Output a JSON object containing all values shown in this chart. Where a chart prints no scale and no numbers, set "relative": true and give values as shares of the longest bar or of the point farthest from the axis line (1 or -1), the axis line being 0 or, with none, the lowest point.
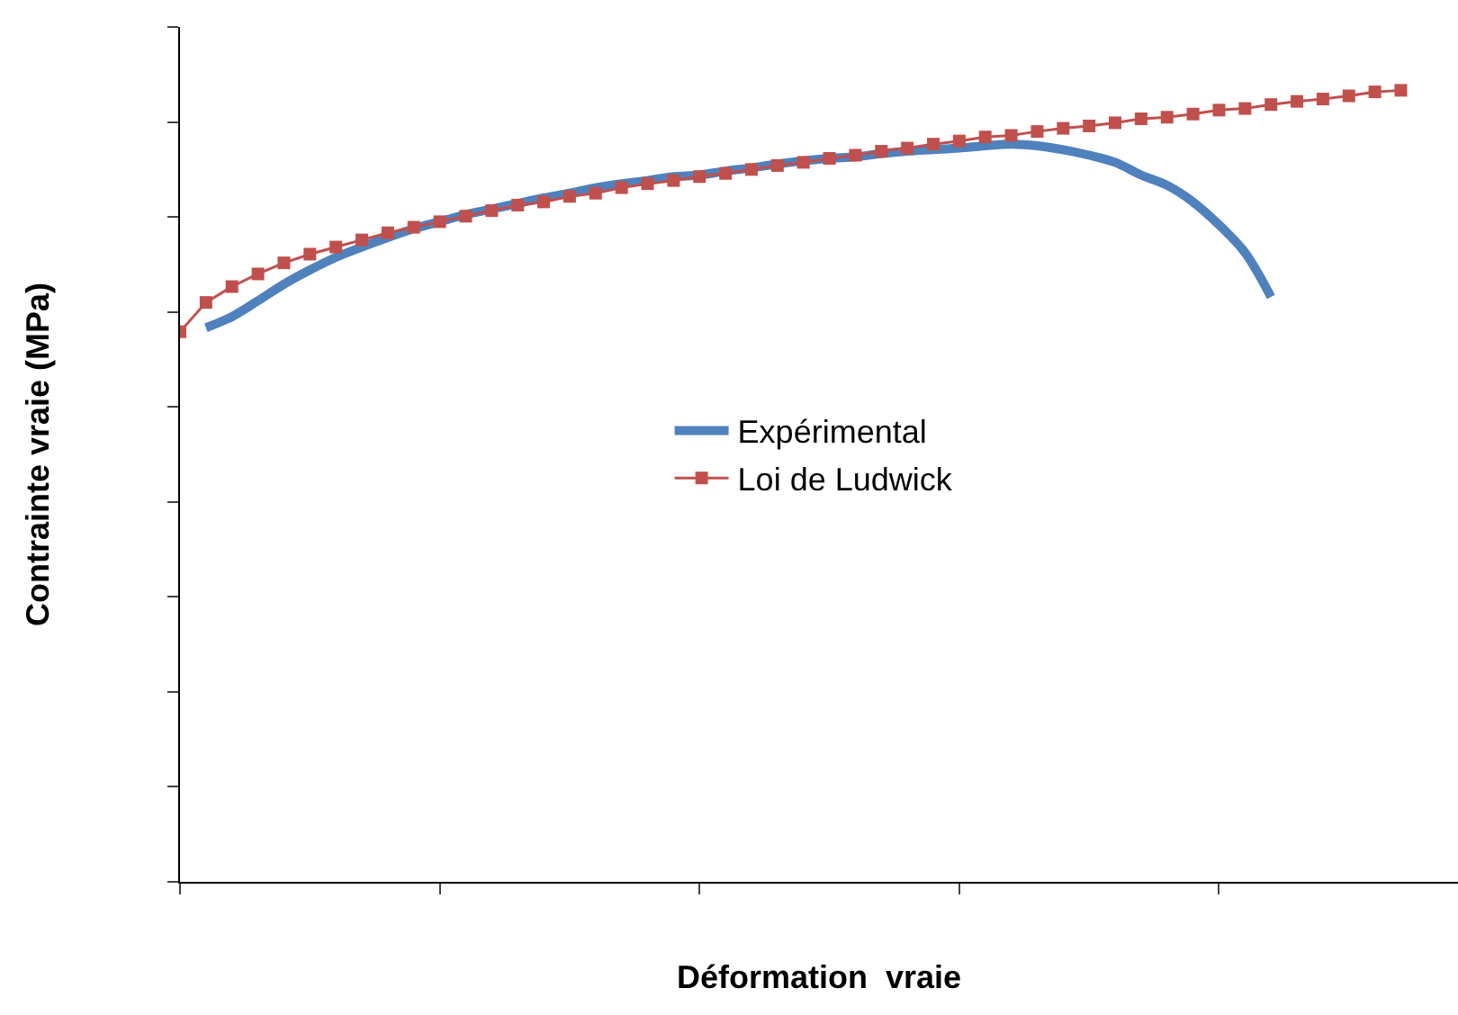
{
  "chart_data": {
    "type": "line",
    "relative": true,
    "xlabel": "Déformation  vraie",
    "ylabel": "Contrainte vraie (MPa)",
    "legend": "center",
    "categories": [
      null,
      null,
      null,
      null,
      null,
      null,
      null,
      null,
      null,
      null,
      null,
      null,
      null,
      null,
      null,
      null,
      null,
      null,
      null,
      null,
      null,
      null,
      null,
      null,
      null,
      null,
      null,
      null,
      null,
      null,
      null,
      null,
      null,
      null,
      null,
      null,
      null,
      null,
      null,
      null,
      null,
      null,
      null,
      null,
      null,
      null,
      null,
      null
    ],
    "series": [
      {
        "name": "Expérimental",
        "color": "#4f81bd",
        "marker": "none",
        "line_style": "solid",
        "values": [
          null,
          0.7,
          0.714,
          0.734,
          0.755,
          0.773,
          0.789,
          0.802,
          0.814,
          0.825,
          0.834,
          0.843,
          0.85,
          0.857,
          0.864,
          0.87,
          0.877,
          0.882,
          0.886,
          0.891,
          0.893,
          0.898,
          0.902,
          0.907,
          0.911,
          0.914,
          0.916,
          0.92,
          0.923,
          0.925,
          0.927,
          0.93,
          0.932,
          0.93,
          0.925,
          0.918,
          0.909,
          0.893,
          0.88,
          0.859,
          0.83,
          0.795,
          0.739,
          null,
          null,
          null,
          null,
          null
        ]
      },
      {
        "name": "Loi de Ludwick",
        "color": "#c0504d",
        "marker": "square",
        "line_style": "solid",
        "values": [
          0.695,
          0.732,
          0.752,
          0.768,
          0.782,
          0.793,
          0.802,
          0.811,
          0.82,
          0.827,
          0.834,
          0.841,
          0.848,
          0.855,
          0.859,
          0.866,
          0.87,
          0.877,
          0.882,
          0.886,
          0.891,
          0.895,
          0.9,
          0.905,
          0.909,
          0.914,
          0.918,
          0.923,
          0.927,
          0.932,
          0.936,
          0.941,
          0.943,
          0.948,
          0.952,
          0.955,
          0.959,
          0.964,
          0.966,
          0.97,
          0.975,
          0.977,
          0.982,
          0.986,
          0.989,
          0.993,
          0.998,
          1
        ]
      }
    ]
  }
}
